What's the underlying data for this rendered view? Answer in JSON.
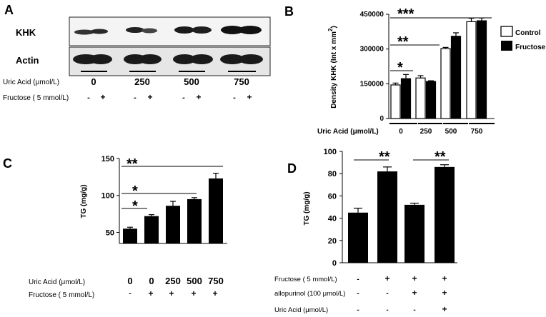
{
  "panels": {
    "A": {
      "letter": "A",
      "rows": [
        "KHK",
        "Actin"
      ],
      "ua_label": "Uric Acid (μmol/L)",
      "fr_label": "Fructose ( 5 mmol/L)",
      "ua_values": [
        "0",
        "250",
        "500",
        "750"
      ],
      "fr_signs": [
        "-",
        "+",
        "-",
        "+",
        "-",
        "+",
        "-",
        "+"
      ]
    },
    "B": {
      "letter": "B",
      "ylabel": "Density KHK (Int x mm",
      "ylabel_sup": "2",
      "ylabel_close": ")",
      "legend": [
        "Control",
        "Fructose"
      ],
      "xlabel": "Uric Acid (μmol/L)",
      "sig": [
        "***",
        "**",
        "*"
      ]
    },
    "C": {
      "letter": "C",
      "ylabel": "TG (mg/g)",
      "ua_label": "Uric Acid (μmol/L)",
      "fr_label": "Fructose ( 5 mmol/L)",
      "fr_signs": [
        "-",
        "+",
        "+",
        "+",
        "+"
      ],
      "sig": [
        "**",
        "*",
        "*"
      ]
    },
    "D": {
      "letter": "D",
      "ylabel": "TG (mg/g)",
      "row_labels": [
        "Fructose ( 5 mmol/L)",
        "allopurinol (100 μmol/L)",
        "Uric Acid (μmol/L)"
      ],
      "row_signs": [
        [
          "-",
          "+",
          "+",
          "+"
        ],
        [
          "-",
          "-",
          "+",
          "+"
        ],
        [
          "-",
          "-",
          "-",
          "+"
        ]
      ],
      "sig": [
        "**",
        "**"
      ]
    }
  },
  "chart_data": [
    {
      "panel": "B",
      "type": "bar",
      "categories": [
        "0",
        "250",
        "500",
        "750"
      ],
      "series": [
        {
          "name": "Control",
          "values": [
            145000,
            175000,
            302000,
            418000
          ],
          "errors": [
            8000,
            10000,
            5000,
            15000
          ],
          "color": "#ffffff"
        },
        {
          "name": "Fructose",
          "values": [
            172000,
            160000,
            355000,
            422000
          ],
          "errors": [
            18000,
            3000,
            15000,
            12000
          ],
          "color": "#000000"
        }
      ],
      "yticks": [
        0,
        150000,
        300000,
        450000
      ],
      "ylim": [
        0,
        450000
      ],
      "ylabel": "Density KHK (Int x mm2)",
      "xlabel": "Uric Acid (μmol/L)"
    },
    {
      "panel": "C",
      "type": "bar",
      "categories": [
        "0",
        "0",
        "250",
        "500",
        "750"
      ],
      "values": [
        55,
        72,
        86,
        95,
        123
      ],
      "errors": [
        2,
        2,
        6,
        2,
        7
      ],
      "color": "#000000",
      "yticks": [
        50,
        100,
        150
      ],
      "ylim": [
        35,
        150
      ],
      "ylabel": "TG (mg/g)"
    },
    {
      "panel": "D",
      "type": "bar",
      "categories": [
        "1",
        "2",
        "3",
        "4"
      ],
      "values": [
        45,
        82,
        52,
        86
      ],
      "errors": [
        4,
        4,
        1.5,
        2
      ],
      "color": "#000000",
      "yticks": [
        0,
        20,
        40,
        60,
        80,
        100
      ],
      "ylim": [
        0,
        100
      ],
      "ylabel": "TG (mg/g)"
    }
  ]
}
